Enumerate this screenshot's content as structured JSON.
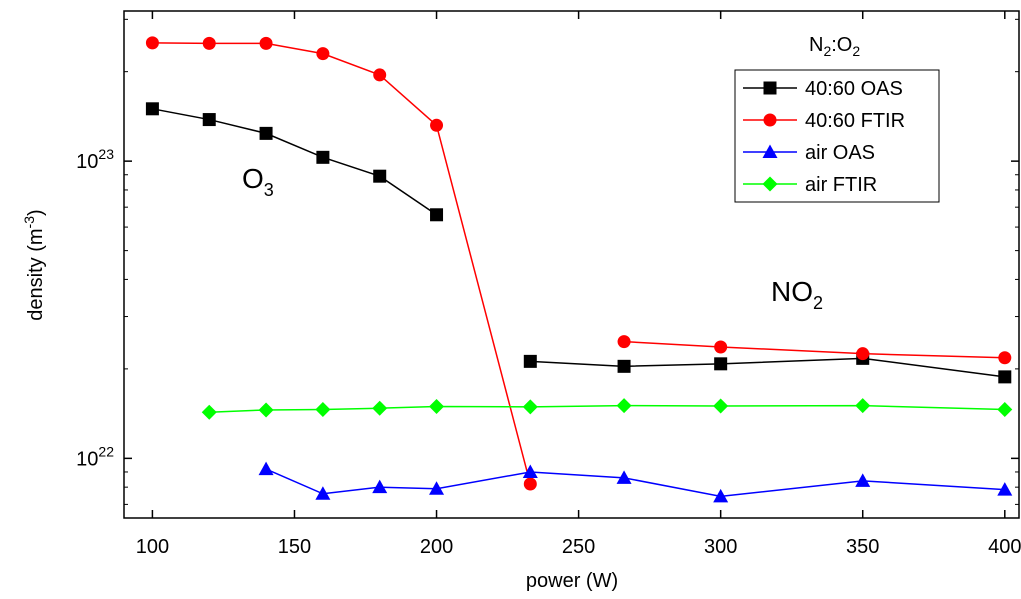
{
  "chart_data": {
    "type": "scatter",
    "title": "",
    "xlabel": "power (W)",
    "ylabel_base": "density (m",
    "ylabel_exp": "-3",
    "ylabel_close": ")",
    "xlim": [
      90,
      405
    ],
    "ylim": [
      6.3e+21,
      3.2e+23
    ],
    "yscale": "log",
    "grid": false,
    "legend_placement": "top-right",
    "legend_title_parts": {
      "n": "N",
      "n_sub": "2",
      "colon": ":O",
      "o_sub": "2"
    },
    "x_ticks": [
      100,
      150,
      200,
      250,
      300,
      350,
      400
    ],
    "x_tick_labels": [
      "100",
      "150",
      "200",
      "250",
      "300",
      "350",
      "400"
    ],
    "y_ticks": [
      1e+22,
      1e+23
    ],
    "y_tick_labels": [
      {
        "base": "10",
        "exp": "22"
      },
      {
        "base": "10",
        "exp": "23"
      }
    ],
    "annotations": [
      {
        "id": "o3",
        "base": "O",
        "sub": "3"
      },
      {
        "id": "no2",
        "base": "NO",
        "sub": "2"
      }
    ],
    "series": [
      {
        "name": "40:60 OAS",
        "color": "#000000",
        "marker": "square",
        "segments": [
          [
            [
              100,
              1.5e+23
            ],
            [
              120,
              1.38e+23
            ],
            [
              140,
              1.24e+23
            ],
            [
              160,
              1.03e+23
            ],
            [
              180,
              8.9e+22
            ],
            [
              200,
              6.6e+22
            ]
          ],
          [
            [
              233,
              2.12e+22
            ],
            [
              266,
              2.04e+22
            ],
            [
              300,
              2.08e+22
            ],
            [
              350,
              2.17e+22
            ],
            [
              400,
              1.88e+22
            ]
          ]
        ]
      },
      {
        "name": "40:60 FTIR",
        "color": "#ff0000",
        "marker": "circle",
        "segments": [
          [
            [
              100,
              2.5e+23
            ],
            [
              120,
              2.49e+23
            ],
            [
              140,
              2.49e+23
            ],
            [
              160,
              2.3e+23
            ],
            [
              180,
              1.95e+23
            ],
            [
              200,
              1.32e+23
            ],
            [
              233,
              8.2e+21
            ]
          ],
          [
            [
              266,
              2.47e+22
            ],
            [
              300,
              2.37e+22
            ],
            [
              350,
              2.25e+22
            ],
            [
              400,
              2.18e+22
            ]
          ]
        ]
      },
      {
        "name": "air OAS",
        "color": "#0000ff",
        "marker": "triangle",
        "segments": [
          [
            [
              140,
              9.2e+21
            ],
            [
              160,
              7.6e+21
            ],
            [
              180,
              8e+21
            ],
            [
              200,
              7.9e+21
            ],
            [
              233,
              9e+21
            ],
            [
              266,
              8.6e+21
            ],
            [
              300,
              7.45e+21
            ],
            [
              350,
              8.4e+21
            ],
            [
              400,
              7.85e+21
            ]
          ]
        ]
      },
      {
        "name": "air FTIR",
        "color": "#00ff00",
        "marker": "diamond",
        "segments": [
          [
            [
              120,
              1.43e+22
            ],
            [
              140,
              1.455e+22
            ],
            [
              160,
              1.46e+22
            ],
            [
              180,
              1.475e+22
            ],
            [
              200,
              1.495e+22
            ],
            [
              233,
              1.49e+22
            ],
            [
              266,
              1.505e+22
            ],
            [
              300,
              1.5e+22
            ],
            [
              350,
              1.505e+22
            ],
            [
              400,
              1.46e+22
            ]
          ]
        ]
      }
    ]
  }
}
